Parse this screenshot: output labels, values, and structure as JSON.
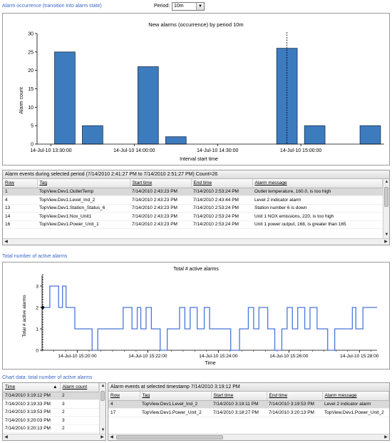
{
  "occurrence": {
    "section_title": "Alarm occurrence (transition into alarm state)",
    "period_label": "Period:",
    "period_value": "10m",
    "chart": {
      "title": "New alarms (occurrence) by period 10m",
      "ylabel": "Alarm count",
      "xlabel": "Interval start time",
      "yticks": [
        "0",
        "5",
        "10",
        "15",
        "20",
        "25",
        "30"
      ],
      "xticks": [
        "14-Jul-10 13:30:00",
        "14-Jul-10 14:00:00",
        "14-Jul-10 14:30:00",
        "14-Jul-10 15:00:00"
      ]
    }
  },
  "events": {
    "header": "Alarm events  during selected period   (7/14/2010 2:41:27 PM to 7/14/2010 2:51:27 PM)   Count=26",
    "columns": [
      "Row",
      "Tag",
      "Start time",
      "End time",
      "Alarm message"
    ],
    "rows": [
      [
        "1",
        "TopView.Dev1.OutletTemp",
        "7/14/2010 2:43:23 PM",
        "7/14/2010 2:53:24 PM",
        "Outlet temperature, 160.0,  is too high"
      ],
      [
        "4",
        "TopView.Dev1.Level_Ind_2",
        "7/14/2010 2:43:23 PM",
        "7/14/2010 2:43:44 PM",
        "Level 2 indicator alarm"
      ],
      [
        "13",
        "TopView.Dev1.Station_Status_6",
        "7/14/2010 2:43:23 PM",
        "7/14/2010 2:53:24 PM",
        "Station number 6 is down"
      ],
      [
        "14",
        "TopView.Dev1.Nox_Unit1",
        "7/14/2010 2:43:23 PM",
        "7/14/2010 2:53:24 PM",
        "Unit 1 NOX emissions, 220, is too high"
      ],
      [
        "16",
        "TopView.Dev1.Power_Unit_1",
        "7/14/2010 2:43:23 PM",
        "7/14/2010 2:53:24 PM",
        "Unit 1 power output, 168,  is greater than 165"
      ]
    ]
  },
  "active": {
    "section_title": "Total number of active alarms",
    "chart": {
      "title": "Total # active alarms",
      "ylabel": "Total # active alarms",
      "xlabel": "Time",
      "yticks": [
        "0",
        "1",
        "2",
        "3"
      ],
      "xticks": [
        "14-Jul-10 15:20:00",
        "14-Jul-10 15:22:00",
        "14-Jul-10 15:24:00",
        "14-Jul-10 15:26:00",
        "14-Jul-10 15:28:00"
      ]
    }
  },
  "chartdata_grid": {
    "section_title": "Chart data: total number of active alarms",
    "columns": [
      "Time",
      "Alarm count"
    ],
    "rows": [
      [
        "7/14/2010 3:19:12 PM",
        "2"
      ],
      [
        "7/14/2010 3:19:33 PM",
        "3"
      ],
      [
        "7/14/2010 3:19:53 PM",
        "2"
      ],
      [
        "7/14/2010 3:20:03 PM",
        "3"
      ],
      [
        "7/14/2010 3:20:13 PM",
        "2"
      ]
    ]
  },
  "timestamp_events": {
    "header": "Alarm events at selected timestamp  7/14/2010 3:19:12 PM",
    "columns": [
      "Row",
      "Tag",
      "Start time",
      "End time",
      "Alarm message"
    ],
    "rows": [
      [
        "4",
        "TopView.Dev1.Level_Ind_2",
        "7/14/2010 3:19:11 PM",
        "7/14/2010 3:19:53 PM",
        "Level 2 indicator alarm"
      ],
      [
        "17",
        "TopView.Dev1.Power_Unit_2",
        "7/14/2010 3:18:27 PM",
        "7/14/2010 3:20:13 PM",
        "TopView.Dev1.Power_Unit_2"
      ]
    ]
  },
  "chart_data": [
    {
      "type": "bar",
      "title": "New alarms (occurrence) by period 10m",
      "xlabel": "Interval start time",
      "ylabel": "Alarm count",
      "ylim": [
        0,
        30
      ],
      "x": [
        "14-Jul-10 13:30:00",
        "14-Jul-10 13:40:00",
        "14-Jul-10 14:00:00",
        "14-Jul-10 14:10:00",
        "14-Jul-10 14:50:00",
        "14-Jul-10 15:00:00",
        "14-Jul-10 15:20:00"
      ],
      "values": [
        25,
        5,
        21,
        2,
        26,
        5,
        5
      ],
      "color": "#3d7bbf",
      "selected_index": 4
    },
    {
      "type": "line",
      "title": "Total # active alarms",
      "xlabel": "Time",
      "ylabel": "Total # active alarms",
      "ylim": [
        0,
        3.5
      ],
      "color": "#4a76d9",
      "step": true,
      "x_minutes_after_15_19": [
        0,
        0.22,
        0.47,
        0.58,
        0.68,
        0.8,
        0.93,
        1.42,
        1.58,
        1.75,
        2.05,
        2.3,
        2.55,
        2.7,
        2.8,
        2.95,
        3.1,
        3.35,
        3.55,
        3.75,
        3.9,
        4.05,
        4.2,
        4.4,
        4.6,
        4.75,
        5.1,
        5.35,
        5.6,
        5.75,
        5.85,
        6.0,
        6.15,
        6.4,
        6.6,
        6.8,
        6.95,
        7.1,
        7.25,
        7.45,
        7.6,
        7.8,
        8.1,
        8.3,
        8.65,
        8.8,
        8.9,
        9.1,
        9.25,
        9.5
      ],
      "values": [
        2,
        3,
        2,
        3,
        2,
        2,
        1,
        0,
        1,
        1,
        1,
        2,
        1,
        2,
        1,
        2,
        1,
        0,
        1,
        1,
        2,
        1,
        2,
        1,
        2,
        1,
        1,
        0,
        1,
        1,
        2,
        1,
        2,
        1,
        0,
        1,
        2,
        1,
        2,
        1,
        2,
        1,
        0,
        1,
        1,
        2,
        1,
        2,
        2,
        2
      ]
    }
  ]
}
